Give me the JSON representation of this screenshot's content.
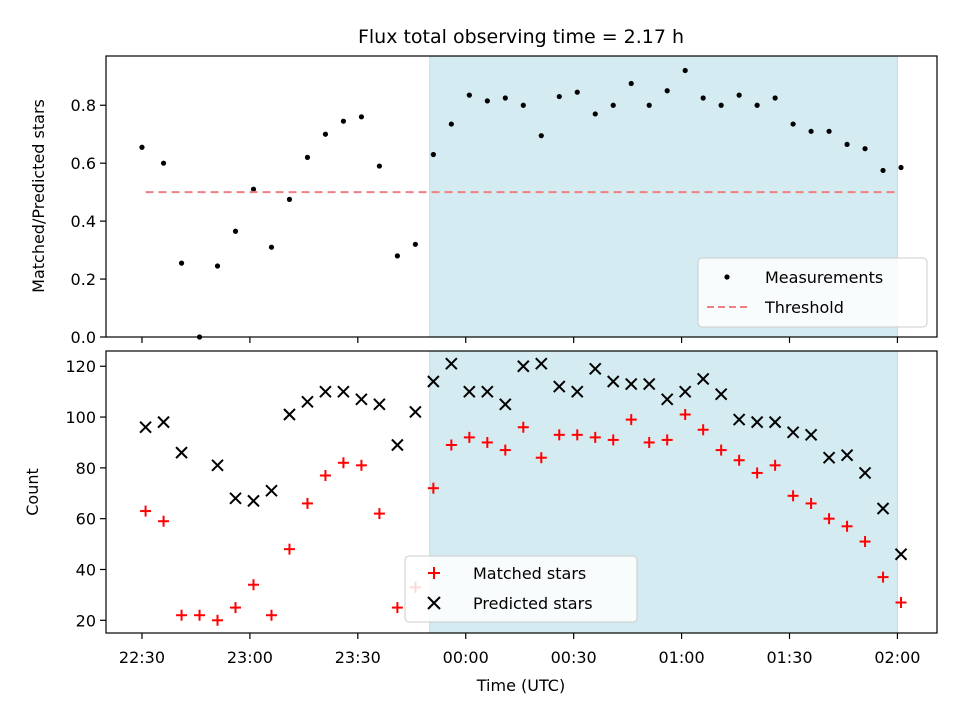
{
  "chart_data": {
    "type": "scatter",
    "title": "Flux total observing time = 2.17 h",
    "xlabel": "Time (UTC)",
    "x_tick_labels": [
      "22:30",
      "23:00",
      "23:30",
      "00:00",
      "00:30",
      "01:00",
      "01:30",
      "02:00"
    ],
    "x_tick_minutes": [
      0,
      30,
      60,
      90,
      120,
      150,
      180,
      210
    ],
    "xlim_minutes": [
      -10,
      221
    ],
    "shaded_region_minutes": [
      80,
      210
    ],
    "shade_color": "#d4ebf1",
    "panels": [
      {
        "ylabel": "Matched/Predicted stars",
        "ylim": [
          0,
          0.97
        ],
        "y_ticks": [
          0.0,
          0.2,
          0.4,
          0.6,
          0.8
        ],
        "y_tick_labels": [
          "0.0",
          "0.2",
          "0.4",
          "0.6",
          "0.8"
        ],
        "legend_position": "lower right",
        "series": [
          {
            "name": "Measurements",
            "marker": "dot",
            "color": "#000000",
            "x": [
              0,
              6,
              11,
              16,
              21,
              26,
              31,
              36,
              41,
              46,
              51,
              56,
              61,
              66,
              71,
              76,
              81,
              86,
              91,
              96,
              101,
              106,
              111,
              116,
              121,
              126,
              131,
              136,
              141,
              146,
              151,
              156,
              161,
              166,
              171,
              176,
              181,
              186,
              191,
              196,
              201,
              206,
              211
            ],
            "y": [
              0.655,
              0.6,
              0.255,
              0.0,
              0.245,
              0.365,
              0.51,
              0.31,
              0.475,
              0.62,
              0.7,
              0.745,
              0.76,
              0.59,
              0.28,
              0.32,
              0.63,
              0.735,
              0.835,
              0.815,
              0.825,
              0.8,
              0.695,
              0.83,
              0.845,
              0.77,
              0.8,
              0.875,
              0.8,
              0.85,
              0.92,
              0.825,
              0.8,
              0.835,
              0.8,
              0.825,
              0.735,
              0.71,
              0.71,
              0.665,
              0.65,
              0.575,
              0.585
            ]
          },
          {
            "name": "Threshold",
            "marker": "dashed-line",
            "color": "#f08080",
            "x": [
              1,
              210
            ],
            "y": [
              0.5,
              0.5
            ]
          }
        ]
      },
      {
        "ylabel": "Count",
        "ylim": [
          15,
          126
        ],
        "y_ticks": [
          20,
          40,
          60,
          80,
          100,
          120
        ],
        "y_tick_labels": [
          "20",
          "40",
          "60",
          "80",
          "100",
          "120"
        ],
        "legend_position": "lower center",
        "series": [
          {
            "name": "Matched stars",
            "marker": "plus",
            "color": "#ff0000",
            "x": [
              1,
              6,
              11,
              16,
              21,
              26,
              31,
              36,
              41,
              46,
              51,
              56,
              61,
              66,
              71,
              76,
              81,
              86,
              91,
              96,
              101,
              106,
              111,
              116,
              121,
              126,
              131,
              136,
              141,
              146,
              151,
              156,
              161,
              166,
              171,
              176,
              181,
              186,
              191,
              196,
              201,
              206,
              211
            ],
            "y": [
              63,
              59,
              22,
              22,
              20,
              25,
              34,
              22,
              48,
              66,
              77,
              82,
              81,
              62,
              25,
              33,
              72,
              89,
              92,
              90,
              87,
              96,
              84,
              93,
              93,
              92,
              91,
              99,
              90,
              91,
              101,
              95,
              87,
              83,
              78,
              81,
              69,
              66,
              60,
              57,
              51,
              37,
              27
            ]
          },
          {
            "name": "Predicted stars",
            "marker": "x",
            "color": "#000000",
            "x": [
              1,
              6,
              11,
              21,
              26,
              31,
              36,
              41,
              46,
              51,
              56,
              61,
              66,
              71,
              76,
              81,
              86,
              91,
              96,
              101,
              106,
              111,
              116,
              121,
              126,
              131,
              136,
              141,
              146,
              151,
              156,
              161,
              166,
              171,
              176,
              181,
              186,
              191,
              196,
              201,
              206,
              211
            ],
            "y": [
              96,
              98,
              86,
              81,
              68,
              67,
              71,
              101,
              106,
              110,
              110,
              107,
              105,
              89,
              102,
              114,
              121,
              110,
              110,
              105,
              120,
              121,
              112,
              110,
              119,
              114,
              113,
              113,
              107,
              110,
              115,
              109,
              99,
              98,
              98,
              94,
              93,
              84,
              85,
              78,
              64,
              46
            ]
          }
        ]
      }
    ]
  }
}
